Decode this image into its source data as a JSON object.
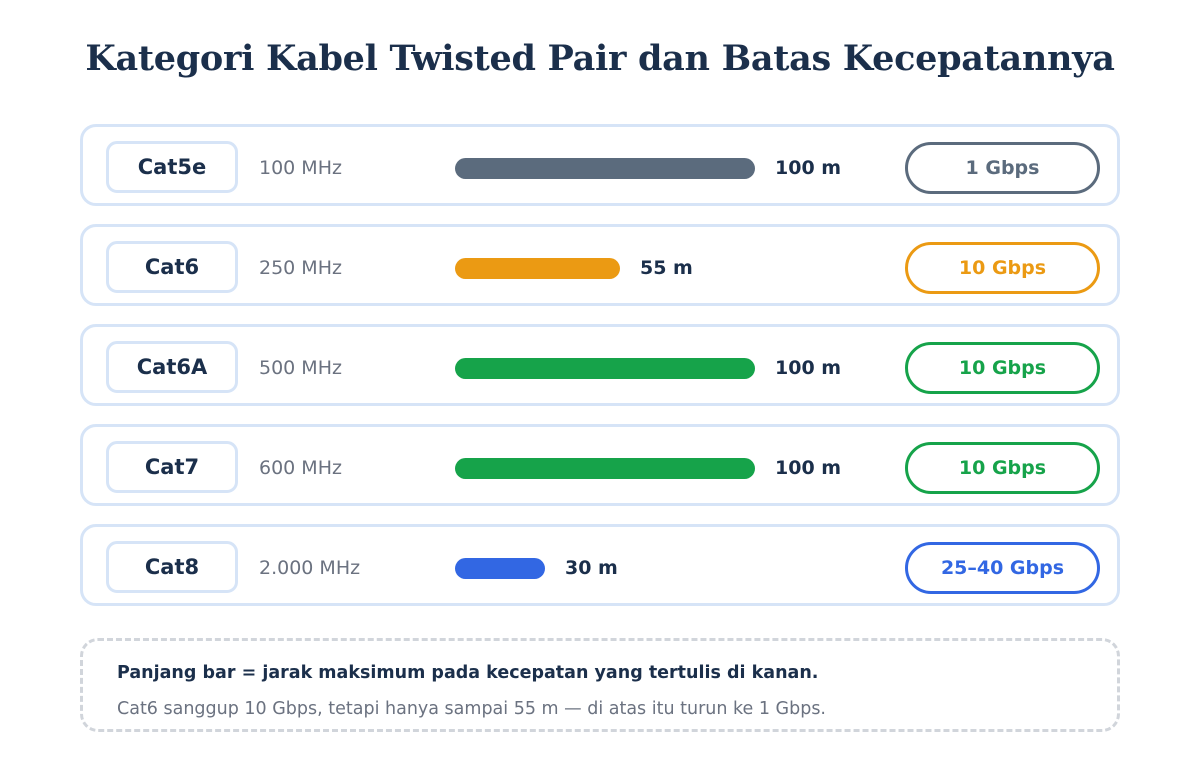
{
  "title": "Kategori Kabel Twisted Pair dan Batas Kecepatannya",
  "chart_data": {
    "type": "bar",
    "orientation": "horizontal",
    "categories": [
      "Cat5e",
      "Cat6",
      "Cat6A",
      "Cat7",
      "Cat8"
    ],
    "frequencies": [
      "100 MHz",
      "250 MHz",
      "500 MHz",
      "600 MHz",
      "2.000 MHz"
    ],
    "values": [
      100,
      55,
      100,
      100,
      30
    ],
    "value_labels": [
      "100 m",
      "55 m",
      "100 m",
      "100 m",
      "30 m"
    ],
    "speeds": [
      "1 Gbps",
      "10 Gbps",
      "10 Gbps",
      "10 Gbps",
      "25–40 Gbps"
    ],
    "colors": [
      "#5b6b7d",
      "#eb9a13",
      "#16a34a",
      "#16a34a",
      "#3267e3"
    ],
    "xlim": [
      0,
      100
    ]
  },
  "note": {
    "line1": "Panjang bar = jarak maksimum pada kecepatan yang tertulis di kanan.",
    "line2": "Cat6 sanggup 10 Gbps, tetapi hanya sampai 55 m — di atas itu turun ke 1 Gbps."
  }
}
